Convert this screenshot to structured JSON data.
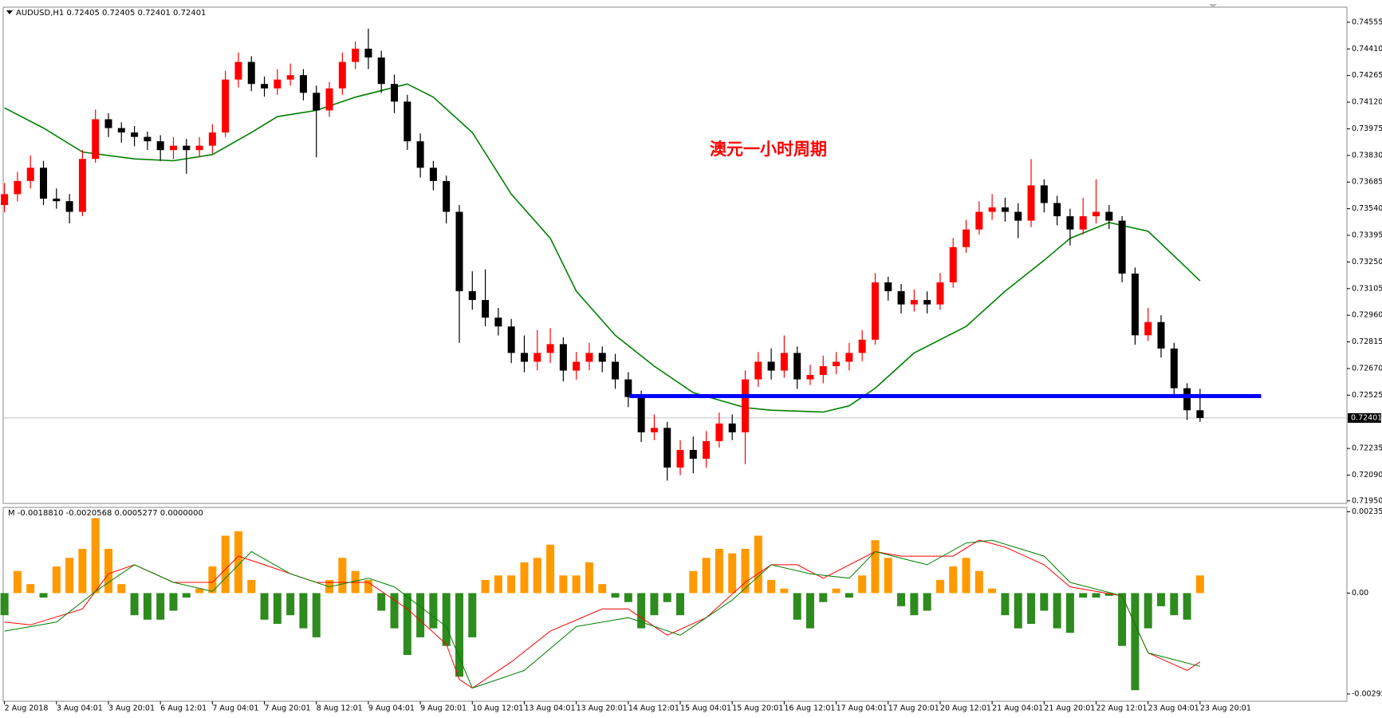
{
  "chart_data": [
    {
      "type": "candlestick",
      "title": "AUDUSD,H1 0.72405 0.72405 0.72401 0.72401",
      "annotation": "澳元一小时周期",
      "annotation_color": "#ff0000",
      "up_color": "#ff0000",
      "down_color": "#000000",
      "open": [
        0.7356,
        0.73619,
        0.73691,
        0.73763,
        0.73595,
        0.73581,
        0.73523,
        0.73811,
        0.74027,
        0.73979,
        0.73955,
        0.73931,
        0.73907,
        0.73859,
        0.73883,
        0.73859,
        0.73883,
        0.73955,
        0.74243,
        0.74339,
        0.74219,
        0.74195,
        0.74243,
        0.74267,
        0.74171,
        0.74075,
        0.74195,
        0.74339,
        0.74411,
        0.74363,
        0.74219,
        0.74123,
        0.73907,
        0.73763,
        0.73691,
        0.73523,
        0.73091,
        0.73043,
        0.72947,
        0.72899,
        0.72755,
        0.72707,
        0.72755,
        0.72803,
        0.72659,
        0.72707,
        0.72755,
        0.72707,
        0.72611,
        0.72515,
        0.72323,
        0.72347,
        0.72131,
        0.72227,
        0.72179,
        0.72275,
        0.72371,
        0.72323,
        0.72611,
        0.72707,
        0.72659,
        0.72755,
        0.72611,
        0.72635,
        0.72683,
        0.72707,
        0.72755,
        0.72827,
        0.73139,
        0.73091,
        0.73019,
        0.73043,
        0.73019,
        0.73139,
        0.73331,
        0.73427,
        0.73523,
        0.73547,
        0.73523,
        0.73475,
        0.73667,
        0.73571,
        0.73499,
        0.73427,
        0.73499,
        0.73523,
        0.73475,
        0.73187,
        0.72851,
        0.72923,
        0.72779,
        0.72563,
        0.72443
      ],
      "high": [
        0.7368,
        0.7374,
        0.7383,
        0.738,
        0.7365,
        0.7362,
        0.7386,
        0.7408,
        0.7406,
        0.7401,
        0.7399,
        0.7396,
        0.7394,
        0.7393,
        0.7392,
        0.7393,
        0.74,
        0.7429,
        0.7439,
        0.7437,
        0.7426,
        0.743,
        0.7433,
        0.743,
        0.7421,
        0.7423,
        0.7439,
        0.7445,
        0.7452,
        0.744,
        0.7427,
        0.7416,
        0.7395,
        0.738,
        0.7372,
        0.7356,
        0.732,
        0.7321,
        0.73,
        0.7294,
        0.7285,
        0.7288,
        0.7289,
        0.7284,
        0.7276,
        0.7281,
        0.7279,
        0.7275,
        0.7265,
        0.7255,
        0.7242,
        0.7238,
        0.7228,
        0.723,
        0.7233,
        0.7243,
        0.7242,
        0.7266,
        0.7276,
        0.7278,
        0.7285,
        0.7279,
        0.7269,
        0.7274,
        0.7276,
        0.7281,
        0.7288,
        0.7319,
        0.7317,
        0.7313,
        0.731,
        0.7309,
        0.7319,
        0.7338,
        0.7348,
        0.7358,
        0.7362,
        0.736,
        0.7357,
        0.7381,
        0.737,
        0.7361,
        0.7354,
        0.736,
        0.737,
        0.7356,
        0.735,
        0.7322,
        0.73,
        0.7296,
        0.7281,
        0.7259,
        0.7256
      ],
      "low": [
        0.7352,
        0.7358,
        0.7365,
        0.7356,
        0.7354,
        0.7346,
        0.735,
        0.7379,
        0.7393,
        0.739,
        0.7388,
        0.7386,
        0.738,
        0.7381,
        0.7373,
        0.7382,
        0.7384,
        0.7393,
        0.742,
        0.7418,
        0.7415,
        0.7416,
        0.7421,
        0.7413,
        0.7382,
        0.7404,
        0.7416,
        0.743,
        0.743,
        0.7417,
        0.7406,
        0.7386,
        0.7371,
        0.7364,
        0.7346,
        0.7281,
        0.7299,
        0.729,
        0.7285,
        0.727,
        0.7265,
        0.7266,
        0.727,
        0.726,
        0.7261,
        0.7266,
        0.7265,
        0.7256,
        0.7246,
        0.7227,
        0.7228,
        0.7206,
        0.7209,
        0.721,
        0.7213,
        0.7224,
        0.7228,
        0.7215,
        0.7257,
        0.7261,
        0.7262,
        0.7256,
        0.7258,
        0.7259,
        0.7264,
        0.7266,
        0.7271,
        0.728,
        0.7304,
        0.7297,
        0.7298,
        0.7297,
        0.7299,
        0.7311,
        0.733,
        0.734,
        0.7348,
        0.7347,
        0.7338,
        0.7344,
        0.7352,
        0.7345,
        0.7334,
        0.734,
        0.7346,
        0.7343,
        0.7314,
        0.728,
        0.7282,
        0.7273,
        0.7251,
        0.7239,
        0.7238
      ],
      "close": [
        0.73619,
        0.73691,
        0.73763,
        0.73595,
        0.73581,
        0.73523,
        0.73811,
        0.74027,
        0.73979,
        0.73955,
        0.73931,
        0.73907,
        0.73859,
        0.73883,
        0.73859,
        0.73883,
        0.73955,
        0.74243,
        0.74339,
        0.74219,
        0.74195,
        0.74243,
        0.74267,
        0.74171,
        0.74075,
        0.74195,
        0.74339,
        0.74411,
        0.74363,
        0.74219,
        0.74123,
        0.73907,
        0.73763,
        0.73691,
        0.73523,
        0.73091,
        0.73043,
        0.72947,
        0.72899,
        0.72755,
        0.72707,
        0.72755,
        0.72803,
        0.72659,
        0.72707,
        0.72755,
        0.72707,
        0.72611,
        0.72515,
        0.72323,
        0.72347,
        0.72131,
        0.72227,
        0.72179,
        0.72275,
        0.72371,
        0.72323,
        0.72611,
        0.72707,
        0.72659,
        0.72755,
        0.72611,
        0.72635,
        0.72683,
        0.72707,
        0.72755,
        0.72827,
        0.73139,
        0.73091,
        0.73019,
        0.73043,
        0.73019,
        0.73139,
        0.73331,
        0.73427,
        0.73523,
        0.73547,
        0.73523,
        0.73475,
        0.73667,
        0.73571,
        0.73499,
        0.73427,
        0.73499,
        0.73523,
        0.73475,
        0.73187,
        0.72851,
        0.72923,
        0.72779,
        0.72563,
        0.72443,
        0.72401
      ],
      "ma": {
        "color": "#008000",
        "x": [
          0,
          3,
          6,
          10,
          13,
          16,
          19,
          21,
          24,
          27,
          31,
          33,
          36,
          39,
          42,
          44,
          47,
          50,
          53,
          57,
          59,
          63,
          65,
          67,
          70,
          74,
          77,
          80,
          82,
          85,
          88,
          90,
          92
        ],
        "values": [
          0.74089,
          0.73979,
          0.73849,
          0.73811,
          0.73801,
          0.73835,
          0.73955,
          0.74041,
          0.74075,
          0.74147,
          0.74219,
          0.74147,
          0.73955,
          0.73619,
          0.73379,
          0.73091,
          0.72851,
          0.72683,
          0.72539,
          0.72457,
          0.72443,
          0.72433,
          0.72467,
          0.72563,
          0.72755,
          0.72899,
          0.73091,
          0.73259,
          0.73379,
          0.73465,
          0.73417,
          0.73283,
          0.73147
        ]
      },
      "hline": {
        "value": 0.7252,
        "x": [
          48.1,
          96.7
        ],
        "color": "#0000ff"
      },
      "last_price": 0.72401,
      "xlim": [
        -0.1,
        103.3
      ],
      "ylim": [
        0.71936,
        0.74637
      ],
      "yticks": [
        0.74555,
        {
          "value": 0.7441,
          "label": "0.74410"
        },
        0.74265,
        {
          "value": 0.7412,
          "label": "0.74120"
        },
        0.73975,
        {
          "value": 0.7383,
          "label": "0.73830"
        },
        0.73685,
        {
          "value": 0.7354,
          "label": "0.73540"
        },
        0.73395,
        {
          "value": 0.7325,
          "label": "0.73250"
        },
        0.73105,
        {
          "value": 0.7296,
          "label": "0.72960"
        },
        0.72815,
        {
          "value": 0.7267,
          "label": "0.72670"
        },
        0.72525,
        0.72235,
        {
          "value": 0.7209,
          "label": "0.72090"
        },
        {
          "value": 0.7195,
          "label": "0.71950"
        }
      ],
      "xticks": [
        {
          "value": 0,
          "label": "2 Aug 2018"
        },
        {
          "value": 4,
          "label": "3 Aug 04:01"
        },
        {
          "value": 8,
          "label": "3 Aug 20:01"
        },
        {
          "value": 12,
          "label": "6 Aug 12:01"
        },
        {
          "value": 16,
          "label": "7 Aug 04:01"
        },
        {
          "value": 20,
          "label": "7 Aug 20:01"
        },
        {
          "value": 24,
          "label": "8 Aug 12:01"
        },
        {
          "value": 28,
          "label": "9 Aug 04:01"
        },
        {
          "value": 32,
          "label": "9 Aug 20:01"
        },
        {
          "value": 36,
          "label": "10 Aug 12:01"
        },
        {
          "value": 40,
          "label": "13 Aug 04:01"
        },
        {
          "value": 44,
          "label": "13 Aug 20:01"
        },
        {
          "value": 48,
          "label": "14 Aug 12:01"
        },
        {
          "value": 52,
          "label": "15 Aug 04:01"
        },
        {
          "value": 56,
          "label": "15 Aug 20:01"
        },
        {
          "value": 60,
          "label": "16 Aug 12:01"
        },
        {
          "value": 64,
          "label": "17 Aug 04:01"
        },
        {
          "value": 68,
          "label": "17 Aug 20:01"
        },
        {
          "value": 72,
          "label": "20 Aug 12:01"
        },
        {
          "value": 76,
          "label": "21 Aug 04:01"
        },
        {
          "value": 80,
          "label": "21 Aug 20:01"
        },
        {
          "value": 84,
          "label": "22 Aug 12:01"
        },
        {
          "value": 88,
          "label": "23 Aug 04:01"
        },
        {
          "value": 92,
          "label": "23 Aug 20:01"
        }
      ]
    },
    {
      "type": "bar",
      "title": "M -0.0018810 -0.0020568 0.0005277 0.0000000",
      "up_color": "#ff9900",
      "down_color": "#2e8b1e",
      "values": [
        -0.00064,
        0.00064,
        0.00026,
        -0.00013,
        0.00077,
        0.00102,
        0.00128,
        0.00217,
        0.00128,
        0.00026,
        -0.00064,
        -0.00077,
        -0.00077,
        -0.00051,
        -0.00013,
        0.00013,
        0.00077,
        0.00166,
        0.00179,
        0.00038,
        -0.00077,
        -0.00089,
        -0.00064,
        -0.00102,
        -0.00128,
        0.00038,
        0.00102,
        0.00064,
        0.00038,
        -0.00051,
        -0.00102,
        -0.00179,
        -0.00128,
        -0.00102,
        -0.00153,
        -0.00242,
        -0.00128,
        0.00038,
        0.00051,
        0.00051,
        0.00089,
        0.00102,
        0.0014,
        0.00051,
        0.00051,
        0.00089,
        0.00026,
        -0.00013,
        -0.00026,
        -0.00102,
        -0.00064,
        -0.00026,
        -0.00064,
        0.00064,
        0.00102,
        0.00128,
        0.00115,
        0.00128,
        0.00166,
        0.00038,
        0.00013,
        -0.00077,
        -0.00102,
        -0.00026,
        0.00013,
        -0.00013,
        0.00051,
        0.00153,
        0.00102,
        -0.00038,
        -0.00064,
        -0.00051,
        0.00038,
        0.00077,
        0.00102,
        0.00064,
        0.00013,
        -0.00064,
        -0.00102,
        -0.00089,
        -0.00051,
        -0.00102,
        -0.00115,
        -0.00013,
        -0.00013,
        -8e-05,
        -0.00153,
        -0.00281,
        -0.00102,
        -0.00038,
        -0.00064,
        -0.00077,
        0.00051
      ],
      "lines": [
        {
          "color": "#ff0000",
          "x": [
            0,
            2,
            6,
            8,
            10,
            13,
            16,
            18,
            20,
            22,
            24,
            26,
            28,
            31,
            34,
            35,
            36,
            39,
            42,
            46,
            48,
            51,
            54,
            57,
            59,
            61,
            63,
            67,
            69,
            73,
            75,
            77,
            80,
            82,
            86,
            88,
            91,
            92
          ],
          "values": [
            -0.00084,
            -0.00092,
            -0.00046,
            0.00056,
            0.00082,
            0.00031,
            0.00031,
            0.00107,
            0.00082,
            0.00056,
            0.00031,
            0.00031,
            0.00031,
            -0.00046,
            -0.00148,
            -0.0025,
            -0.00275,
            -0.00199,
            -0.0011,
            -0.00046,
            -0.00046,
            -0.00122,
            -0.00071,
            0.00031,
            0.00082,
            0.00082,
            0.00043,
            0.0012,
            0.00107,
            0.00107,
            0.00153,
            0.00133,
            0.00082,
            0.00018,
            -8e-05,
            -0.00173,
            -0.00224,
            -0.00199
          ]
        },
        {
          "color": "#008000",
          "x": [
            0,
            4,
            7,
            10,
            13,
            16,
            19,
            22,
            25,
            28,
            30,
            34,
            36,
            40,
            44,
            48,
            52,
            56,
            59,
            62,
            65,
            67,
            71,
            74,
            76,
            80,
            82,
            86,
            88,
            92
          ],
          "values": [
            -0.0011,
            -0.00084,
            5e-05,
            0.00082,
            0.00031,
            5e-05,
            0.0012,
            0.00056,
            0.00018,
            0.00043,
            0.00018,
            -0.00097,
            -0.00275,
            -0.00224,
            -0.00097,
            -0.00071,
            -0.00122,
            -0.0002,
            0.00082,
            0.00056,
            0.00043,
            0.0012,
            0.00082,
            0.00145,
            0.00153,
            0.00107,
            0.00031,
            -8e-05,
            -0.00173,
            -0.00212
          ]
        }
      ],
      "xlim": [
        -0.1,
        103.3
      ],
      "ylim": [
        -0.00313,
        0.00248
      ],
      "yticks": [
        0.002352,
        {
          "value": 0,
          "label": "0.00"
        },
        -0.002921
      ]
    }
  ]
}
